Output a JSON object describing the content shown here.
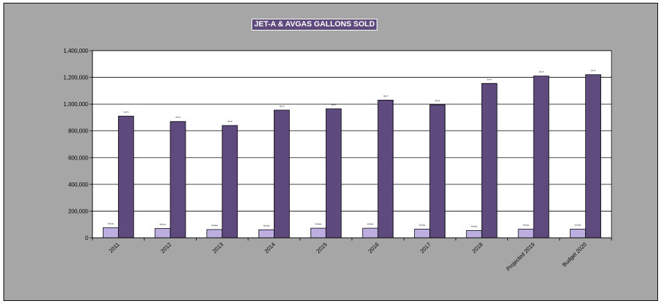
{
  "chart_data": {
    "type": "bar",
    "title": "JET-A & AVGAS GALLONS SOLD",
    "categories": [
      "2011",
      "2012",
      "2013",
      "2014",
      "2015",
      "2016",
      "2017",
      "2018",
      "Projected 2019",
      "Budget 2020"
    ],
    "series": [
      {
        "color": "#bcaee0",
        "values": [
          75000,
          70000,
          62000,
          60000,
          72000,
          72000,
          65000,
          55000,
          65000,
          65000
        ],
        "labels": [
          "AvGas",
          "AvGas",
          "AvGas",
          "AvGas",
          "AvGas",
          "AvGas",
          "AvGas",
          "AvGas",
          "AvGas",
          "AvGas"
        ]
      },
      {
        "color": "#5f4a7e",
        "values": [
          910000,
          870000,
          840000,
          955000,
          965000,
          1030000,
          995000,
          1155000,
          1210000,
          1220000
        ],
        "labels": [
          "Jet-A",
          "Jet-A",
          "Jet-A",
          "Jet-A",
          "Jet-A",
          "Jet-A",
          "Jet-A",
          "Jet-A",
          "Jet-A",
          "Jet-A"
        ]
      }
    ],
    "ylim": [
      0,
      1400000
    ],
    "yticks": [
      0,
      200000,
      400000,
      600000,
      800000,
      1000000,
      1200000,
      1400000
    ],
    "ytick_labels": [
      "0",
      "200,000",
      "400,000",
      "600,000",
      "800,000",
      "1,000,000",
      "1,200,000",
      "1,400,000"
    ],
    "grid": true,
    "legend": "none",
    "xlabel": "",
    "ylabel": ""
  },
  "colors": {
    "frame_background": "#a6a6a6",
    "plot_background": "#ffffff",
    "title_background": "#5f4a7e"
  }
}
